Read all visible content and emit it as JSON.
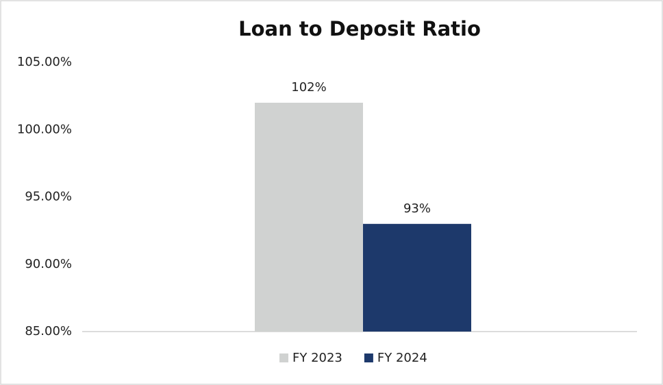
{
  "chart_data": {
    "type": "bar",
    "title": "Loan to Deposit Ratio",
    "categories": [
      null
    ],
    "series": [
      {
        "name": "FY 2023",
        "color": "#d0d2d1",
        "values": [
          102
        ],
        "value_labels": [
          "102%"
        ]
      },
      {
        "name": "FY 2024",
        "color": "#1d396b",
        "values": [
          93
        ],
        "value_labels": [
          "93%"
        ]
      }
    ],
    "ylim": [
      85,
      105
    ],
    "yticks": [
      {
        "value": 85,
        "label": "85.00%"
      },
      {
        "value": 90,
        "label": "90.00%"
      },
      {
        "value": 95,
        "label": "95.00%"
      },
      {
        "value": 100,
        "label": "100.00%"
      },
      {
        "value": 105,
        "label": "105.00%"
      }
    ],
    "grid": false,
    "legend": "bottom"
  }
}
